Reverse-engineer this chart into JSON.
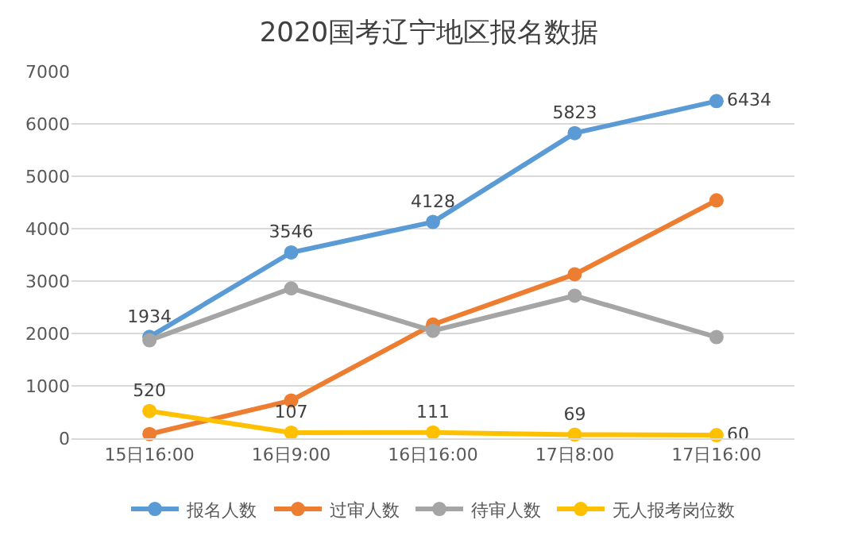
{
  "chart_data": {
    "type": "line",
    "title": "2020国考辽宁地区报名数据",
    "categories": [
      "15日16:00",
      "16日9:00",
      "16日16:00",
      "17日8:00",
      "17日16:00"
    ],
    "series": [
      {
        "name": "报名人数",
        "color": "#5b9bd5",
        "values": [
          1934,
          3546,
          4128,
          5823,
          6434
        ],
        "value_labels": [
          "1934",
          "3546",
          "4128",
          "5823",
          "6434"
        ]
      },
      {
        "name": "过审人数",
        "color": "#ed7d31",
        "values": [
          80,
          720,
          2170,
          3130,
          4540
        ]
      },
      {
        "name": "待审人数",
        "color": "#a5a5a5",
        "values": [
          1870,
          2860,
          2050,
          2720,
          1930
        ]
      },
      {
        "name": "无人报考岗位数",
        "color": "#ffc000",
        "values": [
          520,
          107,
          111,
          69,
          60
        ],
        "value_labels": [
          "520",
          "107",
          "111",
          "69",
          "60"
        ]
      }
    ],
    "ylim": [
      0,
      7000
    ],
    "yticks": [
      0,
      1000,
      2000,
      3000,
      4000,
      5000,
      6000,
      7000
    ],
    "grid": "y",
    "legend": "bottom",
    "marker": "circle",
    "line_style": "solid"
  }
}
